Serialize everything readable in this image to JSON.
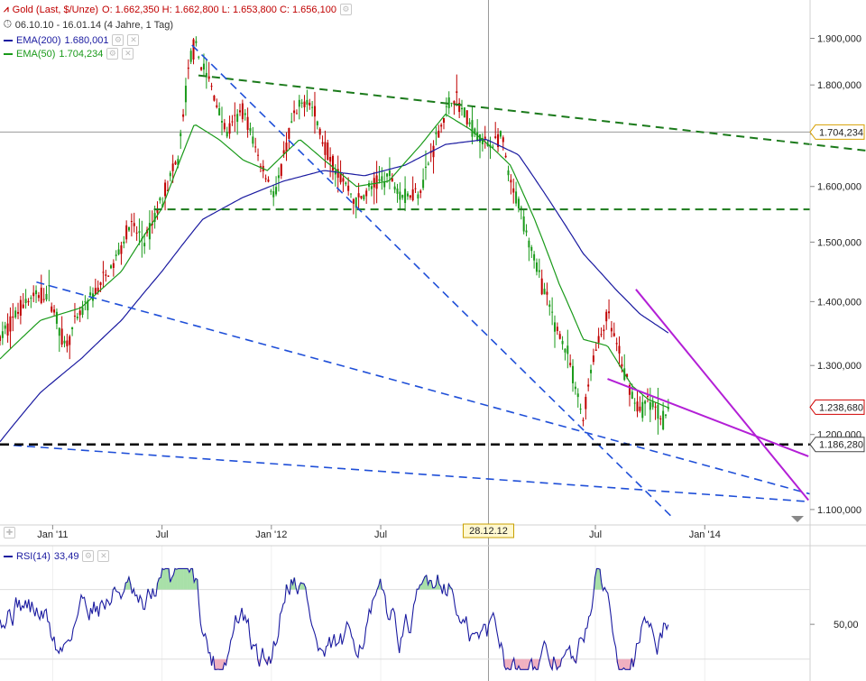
{
  "header": {
    "title": "Gold (Last, $/Unze)",
    "ohlc": "O: 1.662,350  H: 1.662,800  L: 1.653,800  C: 1.656,100",
    "range": "06.10.10 - 16.01.14 (4 Jahre, 1 Tag)",
    "ema200_label": "EMA(200)",
    "ema200_value": "1.680,001",
    "ema50_label": "EMA(50)",
    "ema50_value": "1.704,234",
    "rsi_label": "RSI(14)",
    "rsi_value": "33,49"
  },
  "colors": {
    "candle_up": "#c00000",
    "ema50": "#1a9a1a",
    "ema200": "#1a1aa0",
    "rsi": "#1a1aa0",
    "trend_blue": "#1f4fd8",
    "trend_green": "#1b7a1b",
    "trend_purple": "#b31fd6",
    "support": "#000000"
  },
  "chart_data": {
    "type": "line",
    "x_ticks": [
      "Jan '11",
      "Jul",
      "Jan '12",
      "Jul",
      "Jul",
      "Jan '14"
    ],
    "crosshair_x_label": "28.12.12",
    "y_ticks": [
      "1.900,000",
      "1.800,000",
      "1.700,000",
      "1.600,000",
      "1.500,000",
      "1.400,000",
      "1.300,000",
      "1.200,000",
      "1.100,000"
    ],
    "y_ticks_values": [
      1900,
      1800,
      1700,
      1600,
      1500,
      1400,
      1300,
      1200,
      1100
    ],
    "ylim": [
      1085,
      1925
    ],
    "y_log": true,
    "value_badges": [
      "1.704,234",
      "1.238,680",
      "1.186,280"
    ],
    "value_badges_values": [
      1704.234,
      1238.68,
      1186.28
    ],
    "price_series": {
      "name": "Gold (Last, $/Unze)",
      "x": [
        0,
        0.03,
        0.06,
        0.08,
        0.1,
        0.12,
        0.14,
        0.16,
        0.18,
        0.2,
        0.22,
        0.235,
        0.24,
        0.26,
        0.28,
        0.3,
        0.32,
        0.34,
        0.36,
        0.38,
        0.4,
        0.42,
        0.44,
        0.46,
        0.48,
        0.5,
        0.52,
        0.54,
        0.56,
        0.58,
        0.6,
        0.62,
        0.63,
        0.64,
        0.66,
        0.68,
        0.7,
        0.72,
        0.73,
        0.75,
        0.77,
        0.79,
        0.8,
        0.82,
        0.825
      ],
      "y": [
        1340,
        1400,
        1415,
        1330,
        1380,
        1420,
        1460,
        1530,
        1500,
        1580,
        1650,
        1860,
        1880,
        1800,
        1700,
        1750,
        1650,
        1580,
        1720,
        1780,
        1680,
        1620,
        1570,
        1600,
        1620,
        1580,
        1600,
        1700,
        1780,
        1720,
        1680,
        1690,
        1600,
        1570,
        1470,
        1380,
        1320,
        1220,
        1300,
        1380,
        1290,
        1230,
        1250,
        1220,
        1240
      ]
    },
    "ema50_series": {
      "x": [
        0,
        0.05,
        0.1,
        0.15,
        0.2,
        0.24,
        0.27,
        0.3,
        0.33,
        0.37,
        0.4,
        0.44,
        0.48,
        0.52,
        0.55,
        0.58,
        0.61,
        0.63,
        0.66,
        0.69,
        0.72,
        0.75,
        0.78,
        0.8,
        0.825
      ],
      "y": [
        1310,
        1370,
        1390,
        1450,
        1560,
        1720,
        1690,
        1650,
        1630,
        1690,
        1650,
        1600,
        1610,
        1680,
        1740,
        1710,
        1670,
        1640,
        1540,
        1430,
        1340,
        1330,
        1270,
        1250,
        1238
      ]
    },
    "ema200_series": {
      "x": [
        0,
        0.05,
        0.1,
        0.15,
        0.2,
        0.25,
        0.3,
        0.35,
        0.4,
        0.45,
        0.5,
        0.55,
        0.6,
        0.64,
        0.68,
        0.72,
        0.76,
        0.79,
        0.825
      ],
      "y": [
        1190,
        1260,
        1310,
        1370,
        1450,
        1540,
        1580,
        1610,
        1630,
        1620,
        1640,
        1680,
        1690,
        1660,
        1570,
        1480,
        1420,
        1380,
        1350
      ]
    },
    "rsi_series": {
      "name": "RSI(14)",
      "ylim": [
        20,
        90
      ],
      "y_ticks": [
        "50,00"
      ],
      "y_ticks_values": [
        50
      ]
    }
  }
}
